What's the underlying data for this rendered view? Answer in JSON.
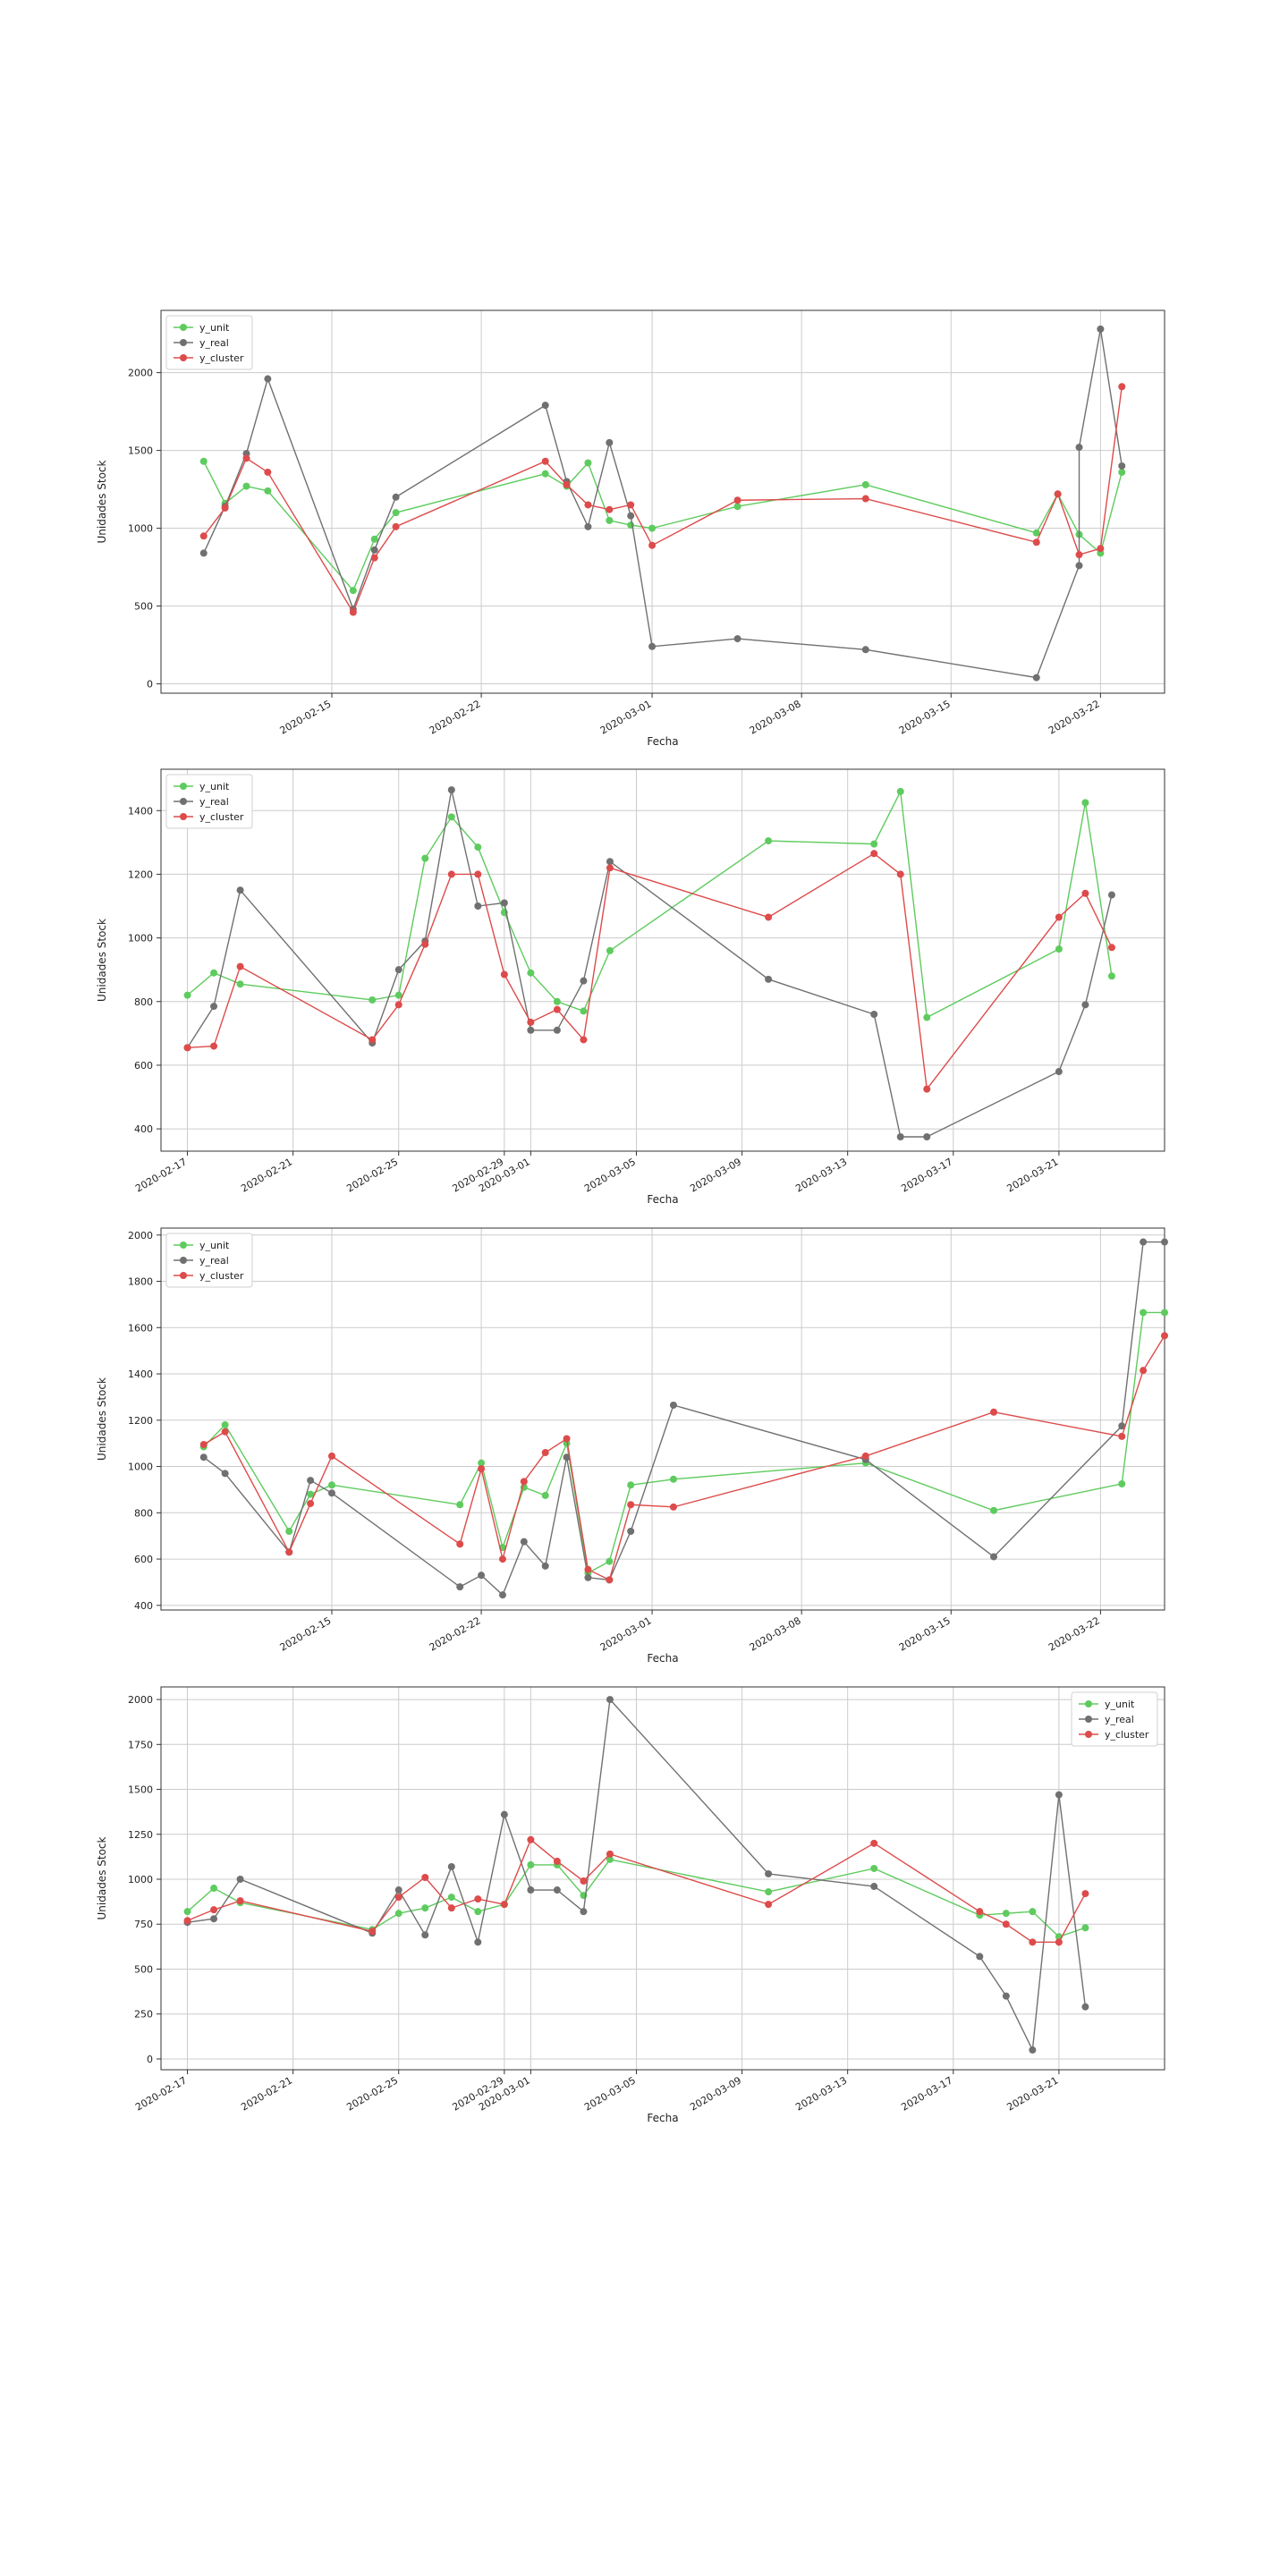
{
  "colors": {
    "y_unit": "#5ecb5e",
    "y_real": "#707070",
    "y_cluster": "#dd4b4b",
    "grid": "#cccccc",
    "axes": "#333333"
  },
  "chart_data": [
    {
      "type": "line",
      "xlabel": "Fecha",
      "ylabel": "Unidades Stock",
      "legend_position": "upper-left",
      "grid": true,
      "xlim": [
        "2020-02-07",
        "2020-03-25"
      ],
      "ylim": [
        -60,
        2400
      ],
      "xticks": [
        "2020-02-15",
        "2020-02-22",
        "2020-03-01",
        "2020-03-08",
        "2020-03-15",
        "2020-03-22"
      ],
      "yticks": [
        0,
        500,
        1000,
        1500,
        2000
      ],
      "series": [
        {
          "name": "y_unit",
          "x": [
            "2020-02-09",
            "2020-02-10",
            "2020-02-11",
            "2020-02-12",
            "2020-02-16",
            "2020-02-17",
            "2020-02-18",
            "2020-02-25",
            "2020-02-26",
            "2020-02-27",
            "2020-02-28",
            "2020-02-29",
            "2020-03-01",
            "2020-03-05",
            "2020-03-11",
            "2020-03-19",
            "2020-03-20",
            "2020-03-21",
            "2020-03-22",
            "2020-03-23"
          ],
          "y": [
            1430,
            1160,
            1270,
            1240,
            600,
            930,
            1100,
            1350,
            1270,
            1420,
            1050,
            1020,
            1000,
            1140,
            1280,
            970,
            1220,
            960,
            840,
            1360
          ]
        },
        {
          "name": "y_real",
          "x": [
            "2020-02-09",
            "2020-02-10",
            "2020-02-11",
            "2020-02-12",
            "2020-02-16",
            "2020-02-17",
            "2020-02-18",
            "2020-02-25",
            "2020-02-26",
            "2020-02-27",
            "2020-02-28",
            "2020-02-29",
            "2020-03-01",
            "2020-03-05",
            "2020-03-11",
            "2020-03-19",
            "2020-03-21",
            "2020-03-21",
            "2020-03-22",
            "2020-03-23"
          ],
          "y": [
            840,
            1140,
            1480,
            1960,
            480,
            860,
            1200,
            1790,
            1300,
            1010,
            1550,
            1080,
            240,
            290,
            220,
            40,
            760,
            1520,
            2280,
            1400
          ]
        },
        {
          "name": "y_cluster",
          "x": [
            "2020-02-09",
            "2020-02-10",
            "2020-02-11",
            "2020-02-12",
            "2020-02-16",
            "2020-02-17",
            "2020-02-18",
            "2020-02-25",
            "2020-02-26",
            "2020-02-27",
            "2020-02-28",
            "2020-02-29",
            "2020-03-01",
            "2020-03-05",
            "2020-03-11",
            "2020-03-19",
            "2020-03-20",
            "2020-03-21",
            "2020-03-22",
            "2020-03-23"
          ],
          "y": [
            950,
            1130,
            1450,
            1360,
            460,
            810,
            1010,
            1430,
            1280,
            1150,
            1120,
            1150,
            890,
            1180,
            1190,
            910,
            1220,
            830,
            870,
            1910
          ]
        }
      ]
    },
    {
      "type": "line",
      "xlabel": "Fecha",
      "ylabel": "Unidades Stock",
      "legend_position": "upper-left",
      "grid": true,
      "xlim": [
        "2020-02-16",
        "2020-03-25"
      ],
      "ylim": [
        330,
        1530
      ],
      "xticks": [
        "2020-02-17",
        "2020-02-21",
        "2020-02-25",
        "2020-02-29",
        "2020-03-01",
        "2020-03-05",
        "2020-03-09",
        "2020-03-13",
        "2020-03-17",
        "2020-03-21"
      ],
      "yticks": [
        400,
        600,
        800,
        1000,
        1200,
        1400
      ],
      "series": [
        {
          "name": "y_unit",
          "x": [
            "2020-02-17",
            "2020-02-18",
            "2020-02-19",
            "2020-02-24",
            "2020-02-25",
            "2020-02-26",
            "2020-02-27",
            "2020-02-28",
            "2020-02-29",
            "2020-03-01",
            "2020-03-02",
            "2020-03-03",
            "2020-03-04",
            "2020-03-10",
            "2020-03-14",
            "2020-03-15",
            "2020-03-16",
            "2020-03-21",
            "2020-03-22",
            "2020-03-23"
          ],
          "y": [
            820,
            890,
            855,
            805,
            820,
            1250,
            1380,
            1285,
            1080,
            890,
            800,
            770,
            960,
            1305,
            1295,
            1460,
            750,
            965,
            1425,
            880
          ]
        },
        {
          "name": "y_real",
          "x": [
            "2020-02-17",
            "2020-02-18",
            "2020-02-19",
            "2020-02-24",
            "2020-02-25",
            "2020-02-26",
            "2020-02-27",
            "2020-02-28",
            "2020-02-29",
            "2020-03-01",
            "2020-03-02",
            "2020-03-03",
            "2020-03-04",
            "2020-03-10",
            "2020-03-14",
            "2020-03-15",
            "2020-03-16",
            "2020-03-21",
            "2020-03-22",
            "2020-03-23"
          ],
          "y": [
            655,
            785,
            1150,
            670,
            900,
            990,
            1465,
            1100,
            1110,
            710,
            710,
            865,
            1240,
            870,
            760,
            375,
            375,
            580,
            790,
            1135
          ]
        },
        {
          "name": "y_cluster",
          "x": [
            "2020-02-17",
            "2020-02-18",
            "2020-02-19",
            "2020-02-24",
            "2020-02-25",
            "2020-02-26",
            "2020-02-27",
            "2020-02-28",
            "2020-02-29",
            "2020-03-01",
            "2020-03-02",
            "2020-03-03",
            "2020-03-04",
            "2020-03-10",
            "2020-03-14",
            "2020-03-15",
            "2020-03-16",
            "2020-03-21",
            "2020-03-22",
            "2020-03-23"
          ],
          "y": [
            655,
            660,
            910,
            680,
            790,
            980,
            1200,
            1200,
            885,
            735,
            775,
            680,
            1220,
            1065,
            1265,
            1200,
            525,
            1065,
            1140,
            970
          ]
        }
      ]
    },
    {
      "type": "line",
      "xlabel": "Fecha",
      "ylabel": "Unidades Stock",
      "legend_position": "upper-left",
      "grid": true,
      "xlim": [
        "2020-02-07",
        "2020-03-25"
      ],
      "ylim": [
        380,
        2030
      ],
      "xticks": [
        "2020-02-15",
        "2020-02-22",
        "2020-03-01",
        "2020-03-08",
        "2020-03-15",
        "2020-03-22"
      ],
      "yticks": [
        400,
        600,
        800,
        1000,
        1200,
        1400,
        1600,
        1800,
        2000
      ],
      "series": [
        {
          "name": "y_unit",
          "x": [
            "2020-02-09",
            "2020-02-10",
            "2020-02-13",
            "2020-02-14",
            "2020-02-15",
            "2020-02-21",
            "2020-02-22",
            "2020-02-23",
            "2020-02-24",
            "2020-02-25",
            "2020-02-26",
            "2020-02-27",
            "2020-02-28",
            "2020-02-29",
            "2020-03-02",
            "2020-03-11",
            "2020-03-17",
            "2020-03-23",
            "2020-03-24",
            "2020-03-25"
          ],
          "y": [
            1085,
            1180,
            720,
            880,
            920,
            835,
            1015,
            650,
            910,
            875,
            1100,
            540,
            590,
            920,
            945,
            1015,
            810,
            925,
            1665,
            1665
          ]
        },
        {
          "name": "y_real",
          "x": [
            "2020-02-09",
            "2020-02-10",
            "2020-02-13",
            "2020-02-14",
            "2020-02-15",
            "2020-02-21",
            "2020-02-22",
            "2020-02-23",
            "2020-02-24",
            "2020-02-25",
            "2020-02-26",
            "2020-02-27",
            "2020-02-28",
            "2020-02-29",
            "2020-03-02",
            "2020-03-11",
            "2020-03-17",
            "2020-03-23",
            "2020-03-24",
            "2020-03-25"
          ],
          "y": [
            1040,
            970,
            630,
            940,
            885,
            480,
            530,
            445,
            675,
            570,
            1040,
            520,
            510,
            720,
            1265,
            1030,
            610,
            1175,
            1970,
            1970
          ]
        },
        {
          "name": "y_cluster",
          "x": [
            "2020-02-09",
            "2020-02-10",
            "2020-02-13",
            "2020-02-14",
            "2020-02-15",
            "2020-02-21",
            "2020-02-22",
            "2020-02-23",
            "2020-02-24",
            "2020-02-25",
            "2020-02-26",
            "2020-02-27",
            "2020-02-28",
            "2020-02-29",
            "2020-03-02",
            "2020-03-11",
            "2020-03-17",
            "2020-03-23",
            "2020-03-24",
            "2020-03-25"
          ],
          "y": [
            1095,
            1150,
            630,
            840,
            1045,
            665,
            990,
            600,
            935,
            1060,
            1120,
            555,
            510,
            835,
            825,
            1045,
            1235,
            1130,
            1415,
            1565
          ]
        }
      ]
    },
    {
      "type": "line",
      "xlabel": "Fecha",
      "ylabel": "Unidades Stock",
      "legend_position": "upper-right",
      "grid": true,
      "xlim": [
        "2020-02-16",
        "2020-03-25"
      ],
      "ylim": [
        -60,
        2070
      ],
      "xticks": [
        "2020-02-17",
        "2020-02-21",
        "2020-02-25",
        "2020-02-29",
        "2020-03-01",
        "2020-03-05",
        "2020-03-09",
        "2020-03-13",
        "2020-03-17",
        "2020-03-21"
      ],
      "yticks": [
        0,
        250,
        500,
        750,
        1000,
        1250,
        1500,
        1750,
        2000
      ],
      "series": [
        {
          "name": "y_unit",
          "x": [
            "2020-02-17",
            "2020-02-18",
            "2020-02-19",
            "2020-02-24",
            "2020-02-25",
            "2020-02-26",
            "2020-02-27",
            "2020-02-28",
            "2020-02-29",
            "2020-03-01",
            "2020-03-02",
            "2020-03-03",
            "2020-03-04",
            "2020-03-10",
            "2020-03-14",
            "2020-03-18",
            "2020-03-19",
            "2020-03-20",
            "2020-03-21",
            "2020-03-22"
          ],
          "y": [
            820,
            950,
            870,
            720,
            810,
            840,
            900,
            820,
            860,
            1080,
            1080,
            910,
            1110,
            930,
            1060,
            800,
            810,
            820,
            680,
            730
          ]
        },
        {
          "name": "y_real",
          "x": [
            "2020-02-17",
            "2020-02-18",
            "2020-02-19",
            "2020-02-24",
            "2020-02-25",
            "2020-02-26",
            "2020-02-27",
            "2020-02-28",
            "2020-02-29",
            "2020-03-01",
            "2020-03-02",
            "2020-03-03",
            "2020-03-04",
            "2020-03-10",
            "2020-03-14",
            "2020-03-18",
            "2020-03-19",
            "2020-03-20",
            "2020-03-21",
            "2020-03-22"
          ],
          "y": [
            760,
            780,
            1000,
            700,
            940,
            690,
            1070,
            650,
            1360,
            940,
            940,
            820,
            2000,
            1030,
            960,
            570,
            350,
            50,
            1470,
            290
          ]
        },
        {
          "name": "y_cluster",
          "x": [
            "2020-02-17",
            "2020-02-18",
            "2020-02-19",
            "2020-02-24",
            "2020-02-25",
            "2020-02-26",
            "2020-02-27",
            "2020-02-28",
            "2020-02-29",
            "2020-03-01",
            "2020-03-02",
            "2020-03-03",
            "2020-03-04",
            "2020-03-10",
            "2020-03-14",
            "2020-03-18",
            "2020-03-19",
            "2020-03-20",
            "2020-03-21",
            "2020-03-22"
          ],
          "y": [
            770,
            830,
            880,
            710,
            900,
            1010,
            840,
            890,
            860,
            1220,
            1100,
            990,
            1140,
            860,
            1200,
            820,
            750,
            650,
            650,
            920
          ]
        }
      ]
    }
  ]
}
